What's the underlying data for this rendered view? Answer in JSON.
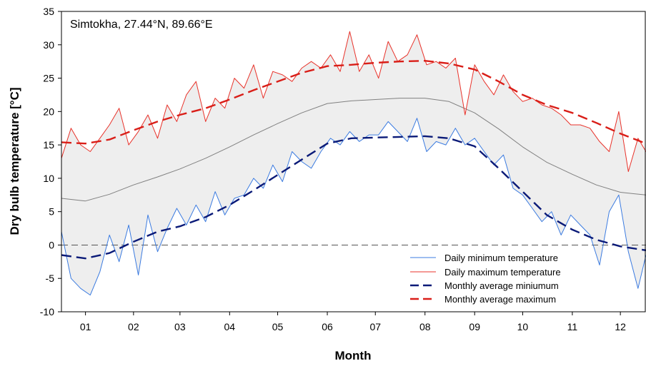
{
  "chart_data": {
    "type": "line",
    "annotation": "Simtokha, 27.44°N, 89.66°E",
    "xlabel": "Month",
    "ylabel": "Dry bulb temperature [°C]",
    "xlim": [
      0,
      365
    ],
    "ylim": [
      -10,
      35
    ],
    "yticks": [
      -10,
      -5,
      0,
      5,
      10,
      15,
      20,
      25,
      30,
      35
    ],
    "x_ticks": [
      {
        "day": 15,
        "label": "01"
      },
      {
        "day": 45,
        "label": "02"
      },
      {
        "day": 74,
        "label": "03"
      },
      {
        "day": 105,
        "label": "04"
      },
      {
        "day": 135,
        "label": "05"
      },
      {
        "day": 166,
        "label": "06"
      },
      {
        "day": 196,
        "label": "07"
      },
      {
        "day": 227,
        "label": "08"
      },
      {
        "day": 258,
        "label": "09"
      },
      {
        "day": 288,
        "label": "10"
      },
      {
        "day": 319,
        "label": "11"
      },
      {
        "day": 349,
        "label": "12"
      }
    ],
    "zero_line": 0,
    "legend_position": "bottom-right",
    "colors": {
      "daily_min": "#3b7be0",
      "daily_max": "#e8332b",
      "monthly_min": "#0a1a78",
      "monthly_max": "#d91e18",
      "mean": "#808080",
      "band": "#eeeeee"
    },
    "series": [
      {
        "name": "Daily minimum temperature",
        "style": "solid-thin",
        "x": [
          0,
          6,
          12,
          18,
          24,
          30,
          36,
          42,
          48,
          54,
          60,
          66,
          72,
          78,
          84,
          90,
          96,
          102,
          108,
          114,
          120,
          126,
          132,
          138,
          144,
          150,
          156,
          162,
          168,
          174,
          180,
          186,
          192,
          198,
          204,
          210,
          216,
          222,
          228,
          234,
          240,
          246,
          252,
          258,
          264,
          270,
          276,
          282,
          288,
          294,
          300,
          306,
          312,
          318,
          324,
          330,
          336,
          342,
          348,
          354,
          360,
          365
        ],
        "y": [
          2.0,
          -5.0,
          -6.5,
          -7.5,
          -4.0,
          1.5,
          -2.5,
          3.0,
          -4.5,
          4.5,
          -1.0,
          2.5,
          5.5,
          3.0,
          6.0,
          3.5,
          8.0,
          4.5,
          7.0,
          7.5,
          10.0,
          8.5,
          12.0,
          9.5,
          14.0,
          12.5,
          11.5,
          14.0,
          16.0,
          15.0,
          17.0,
          15.5,
          16.5,
          16.5,
          18.5,
          17.0,
          15.5,
          19.0,
          14.0,
          15.5,
          15.0,
          17.5,
          15.0,
          16.0,
          14.0,
          12.0,
          13.5,
          8.5,
          7.5,
          5.5,
          3.5,
          5.0,
          1.5,
          4.5,
          3.0,
          1.5,
          -3.0,
          5.0,
          7.5,
          -1.0,
          -6.5,
          -1.5
        ]
      },
      {
        "name": "Daily maximum temperature",
        "style": "solid-thin",
        "x": [
          0,
          6,
          12,
          18,
          24,
          30,
          36,
          42,
          48,
          54,
          60,
          66,
          72,
          78,
          84,
          90,
          96,
          102,
          108,
          114,
          120,
          126,
          132,
          138,
          144,
          150,
          156,
          162,
          168,
          174,
          180,
          186,
          192,
          198,
          204,
          210,
          216,
          222,
          228,
          234,
          240,
          246,
          252,
          258,
          264,
          270,
          276,
          282,
          288,
          294,
          300,
          306,
          312,
          318,
          324,
          330,
          336,
          342,
          348,
          354,
          360,
          365
        ],
        "y": [
          13.0,
          17.5,
          15.0,
          14.0,
          16.0,
          18.0,
          20.5,
          15.0,
          17.0,
          19.5,
          16.0,
          21.0,
          18.5,
          22.5,
          24.5,
          18.5,
          22.0,
          20.5,
          25.0,
          23.5,
          27.0,
          22.0,
          26.0,
          25.5,
          24.5,
          26.5,
          27.5,
          26.5,
          28.5,
          26.0,
          32.0,
          26.0,
          28.5,
          25.0,
          30.5,
          27.5,
          28.5,
          31.5,
          27.0,
          27.5,
          26.5,
          28.0,
          19.5,
          27.0,
          24.5,
          22.5,
          25.5,
          23.0,
          21.5,
          22.0,
          21.0,
          20.5,
          19.5,
          18.0,
          18.0,
          17.5,
          15.5,
          14.0,
          20.0,
          11.0,
          16.0,
          14.0
        ]
      },
      {
        "name": "Monthly average miniumum",
        "style": "dashed",
        "x": [
          0,
          15,
          30,
          45,
          60,
          74,
          90,
          105,
          120,
          135,
          150,
          166,
          181,
          196,
          211,
          227,
          242,
          258,
          273,
          288,
          303,
          319,
          334,
          349,
          365
        ],
        "y": [
          -1.5,
          -2.0,
          -1.2,
          0.5,
          2.0,
          2.8,
          4.2,
          6.0,
          8.2,
          10.5,
          12.8,
          15.2,
          16.0,
          16.1,
          16.2,
          16.3,
          16.0,
          14.8,
          11.5,
          8.0,
          4.5,
          2.3,
          0.8,
          -0.2,
          -0.8
        ]
      },
      {
        "name": "Monthly average maximum",
        "style": "dashed",
        "x": [
          0,
          15,
          30,
          45,
          60,
          74,
          90,
          105,
          120,
          135,
          150,
          166,
          181,
          196,
          211,
          227,
          242,
          258,
          273,
          288,
          303,
          319,
          334,
          349,
          365
        ],
        "y": [
          15.4,
          15.2,
          15.8,
          17.2,
          18.5,
          19.5,
          20.5,
          21.8,
          23.2,
          24.5,
          25.8,
          26.8,
          27.0,
          27.3,
          27.5,
          27.6,
          27.2,
          26.3,
          24.5,
          22.5,
          21.0,
          19.8,
          18.3,
          16.7,
          15.2
        ]
      },
      {
        "style": "solid-thin",
        "x": [
          0,
          15,
          30,
          45,
          60,
          74,
          90,
          105,
          120,
          135,
          150,
          166,
          181,
          196,
          211,
          227,
          242,
          258,
          273,
          288,
          303,
          319,
          334,
          349,
          365
        ],
        "y": [
          7.0,
          6.6,
          7.6,
          9.0,
          10.2,
          11.4,
          13.0,
          14.7,
          16.5,
          18.2,
          19.8,
          21.2,
          21.6,
          21.8,
          22.0,
          22.0,
          21.5,
          19.8,
          17.4,
          14.7,
          12.4,
          10.6,
          9.0,
          7.9,
          7.5
        ]
      }
    ]
  }
}
